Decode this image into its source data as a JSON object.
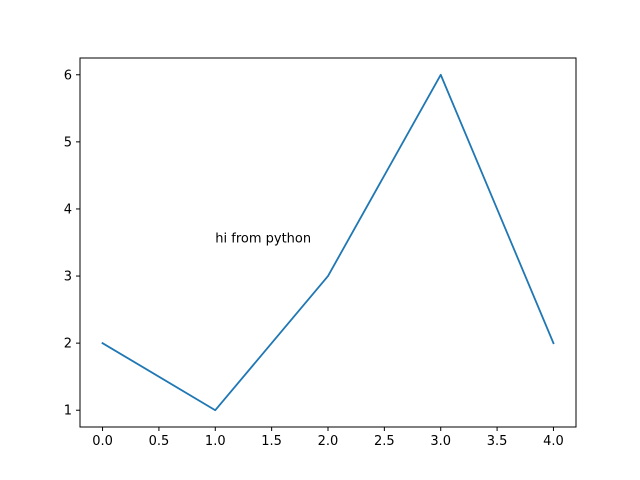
{
  "chart_data": {
    "type": "line",
    "title": "",
    "xlabel": "",
    "ylabel": "",
    "x": [
      0,
      1,
      2,
      3,
      4
    ],
    "series": [
      {
        "values": [
          2,
          1,
          3,
          6,
          2
        ],
        "color": "#1f77b4"
      }
    ],
    "xlim": [
      -0.2,
      4.2
    ],
    "ylim": [
      0.75,
      6.25
    ],
    "xticks": [
      0.0,
      0.5,
      1.0,
      1.5,
      2.0,
      2.5,
      3.0,
      3.5,
      4.0
    ],
    "xtick_labels": [
      "0.0",
      "0.5",
      "1.0",
      "1.5",
      "2.0",
      "2.5",
      "3.0",
      "3.5",
      "4.0"
    ],
    "yticks": [
      1,
      2,
      3,
      4,
      5,
      6
    ],
    "ytick_labels": [
      "1",
      "2",
      "3",
      "4",
      "5",
      "6"
    ],
    "grid": false,
    "legend": "none",
    "annotations": [
      {
        "text": "hi from python",
        "x": 1.0,
        "y": 3.5
      }
    ]
  }
}
